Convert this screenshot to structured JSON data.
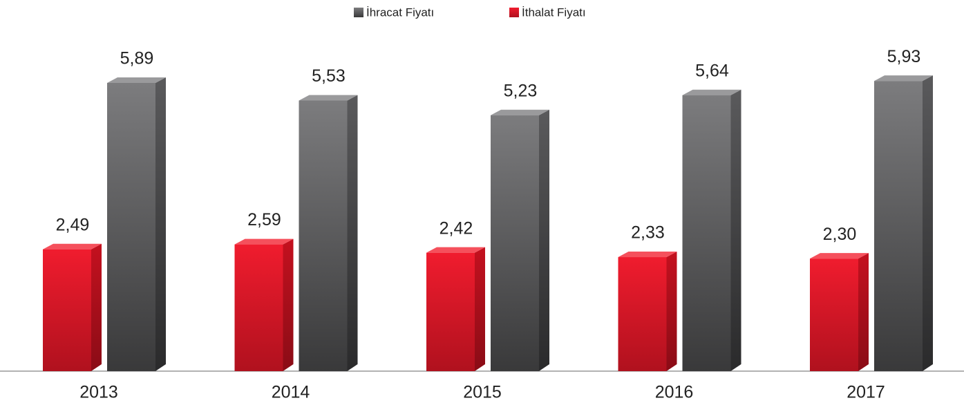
{
  "chart_data": {
    "type": "bar3d",
    "categories": [
      "2013",
      "2014",
      "2015",
      "2016",
      "2017"
    ],
    "series": [
      {
        "name": "İthalat Fiyatı",
        "color": "#e31b2b",
        "values": [
          2.49,
          2.59,
          2.42,
          2.33,
          2.3
        ],
        "value_labels": [
          "2,49",
          "2,59",
          "2,42",
          "2,33",
          "2,30"
        ]
      },
      {
        "name": "İhracat Fiyatı",
        "color": "#4a4a4c",
        "values": [
          5.89,
          5.53,
          5.23,
          5.64,
          5.93
        ],
        "value_labels": [
          "5,89",
          "5,53",
          "5,23",
          "5,64",
          "5,93"
        ]
      }
    ],
    "legend": "top"
  }
}
